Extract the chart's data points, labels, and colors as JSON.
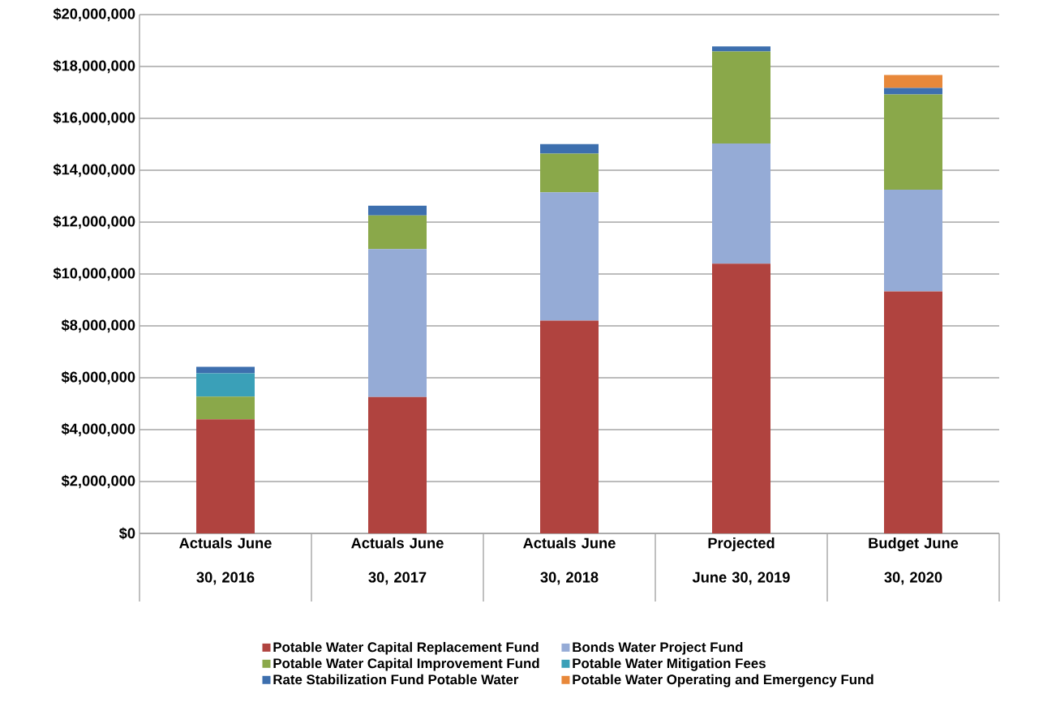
{
  "chart_data": {
    "type": "bar",
    "stacked": true,
    "categories": [
      "Actuals June 30, 2016",
      "Actuals June 30, 2017",
      "Actuals June 30, 2018",
      "Projected June 30, 2019",
      "Budget June 30, 2020"
    ],
    "series": [
      {
        "name": "Potable Water Capital Replacement Fund",
        "color": "#b0433f",
        "values": [
          4400000,
          5260000,
          8200000,
          10400000,
          9330000
        ]
      },
      {
        "name": "Bonds Water Project Fund",
        "color": "#95abd6",
        "values": [
          0,
          5700000,
          4950000,
          4630000,
          3920000
        ]
      },
      {
        "name": "Potable Water Capital Improvement Fund",
        "color": "#8aa84a",
        "values": [
          870000,
          1300000,
          1490000,
          3550000,
          3670000
        ]
      },
      {
        "name": "Potable Water Mitigation Fees",
        "color": "#3aa0b8",
        "values": [
          900000,
          0,
          0,
          0,
          0
        ]
      },
      {
        "name": "Rate Stabilization Fund Potable Water",
        "color": "#3d6fae",
        "values": [
          250000,
          370000,
          370000,
          190000,
          250000
        ]
      },
      {
        "name": "Potable Water Operating and Emergency Fund",
        "color": "#e8883a",
        "values": [
          0,
          0,
          0,
          0,
          500000
        ]
      }
    ],
    "ylim": [
      0,
      20000000
    ],
    "yticks": [
      {
        "value": 0,
        "label": "$0"
      },
      {
        "value": 2000000,
        "label": "$2,000,000"
      },
      {
        "value": 4000000,
        "label": "$4,000,000"
      },
      {
        "value": 6000000,
        "label": "$6,000,000"
      },
      {
        "value": 8000000,
        "label": "$8,000,000"
      },
      {
        "value": 10000000,
        "label": "$10,000,000"
      },
      {
        "value": 12000000,
        "label": "$12,000,000"
      },
      {
        "value": 14000000,
        "label": "$14,000,000"
      },
      {
        "value": 16000000,
        "label": "$16,000,000"
      },
      {
        "value": 18000000,
        "label": "$18,000,000"
      },
      {
        "value": 20000000,
        "label": "$20,000,000"
      }
    ],
    "grid": "y",
    "legend": "bottom"
  }
}
